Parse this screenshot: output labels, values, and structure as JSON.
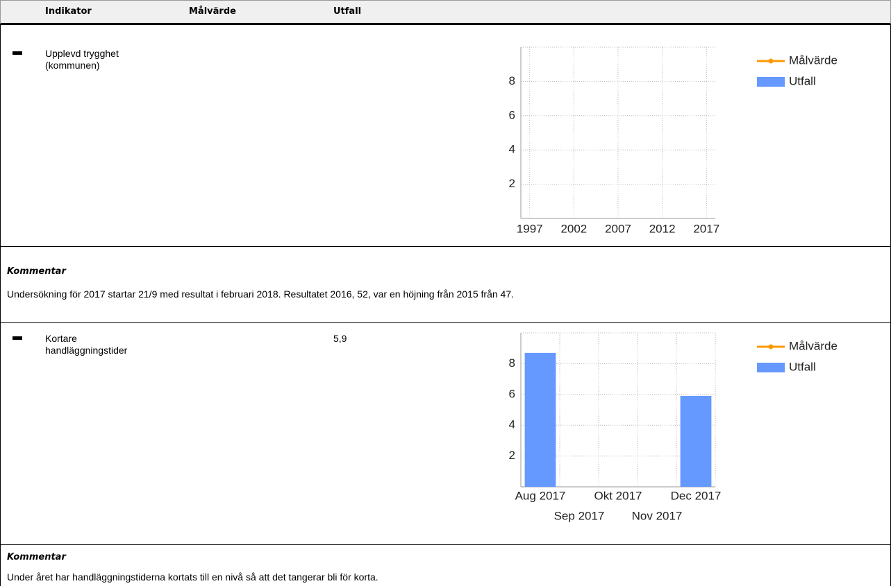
{
  "header": {
    "columns": [
      "Indikator",
      "Målvärde",
      "Utfall"
    ]
  },
  "rows": [
    {
      "indicator": "Upplevd trygghet (kommunen)",
      "comment_label": "Kommentar",
      "comment": "Undersökning för 2017 startar 21/9 med resultat i februari 2018. Resultatet 2016, 52, var en höjning från 2015 från 47."
    },
    {
      "indicator": "Kortare handläggningstider",
      "outcome": "5,9",
      "comment_label": "Kommentar",
      "comment": "Under året har handläggningstiderna kortats till en nivå så att det tangerar bli för korta."
    }
  ],
  "chart_data": [
    {
      "type": "combo",
      "x": [],
      "xlim": [
        1996,
        2018
      ],
      "xticks": [
        1997,
        2002,
        2007,
        2012,
        2017
      ],
      "ylim": [
        0,
        10
      ],
      "yticks": [
        2,
        4,
        6,
        8
      ],
      "grid": true,
      "legend": "right",
      "series": [
        {
          "name": "Målvärde",
          "type": "line",
          "color": "#ff9900",
          "values": []
        },
        {
          "name": "Utfall",
          "type": "bar",
          "color": "#6699ff",
          "values": []
        }
      ]
    },
    {
      "type": "combo",
      "categories": [
        "Aug 2017",
        "Sep 2017",
        "Okt 2017",
        "Nov 2017",
        "Dec 2017"
      ],
      "ylim": [
        0,
        10
      ],
      "yticks": [
        2,
        4,
        6,
        8
      ],
      "grid": true,
      "legend": "right",
      "series": [
        {
          "name": "Målvärde",
          "type": "line",
          "color": "#ff9900",
          "values": [
            null,
            null,
            null,
            null,
            null
          ]
        },
        {
          "name": "Utfall",
          "type": "bar",
          "color": "#6699ff",
          "values": [
            8.7,
            null,
            null,
            null,
            5.9
          ]
        }
      ]
    }
  ]
}
